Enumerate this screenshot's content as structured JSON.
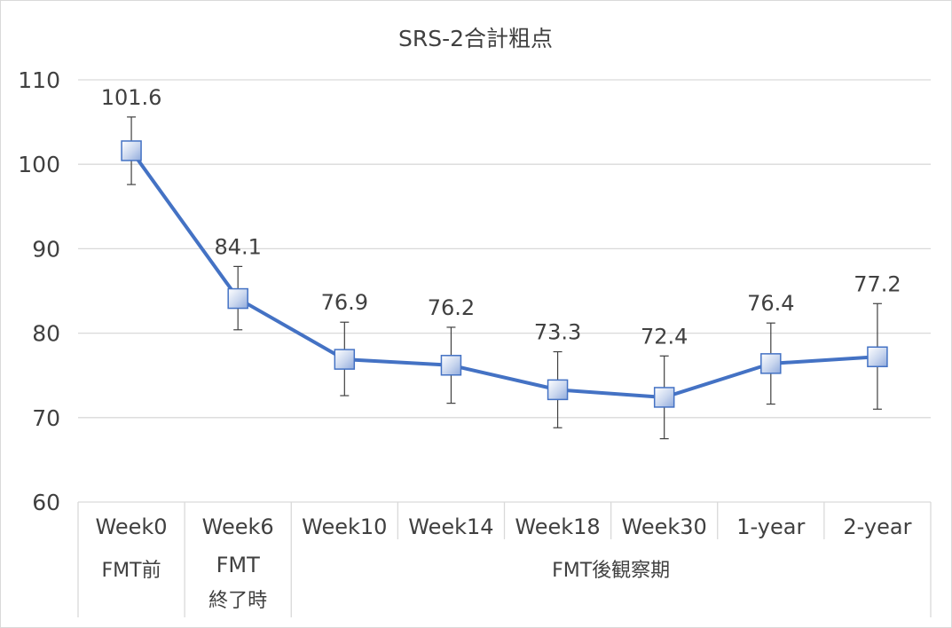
{
  "chart_data": {
    "type": "line",
    "title": "SRS-2合計粗点",
    "xlabel": "",
    "ylabel": "",
    "ylim": [
      60,
      110
    ],
    "yticks": [
      60,
      70,
      80,
      90,
      100,
      110
    ],
    "grid": true,
    "categories": [
      "Week0",
      "Week6",
      "Week10",
      "Week14",
      "Week18",
      "Week30",
      "1-year",
      "2-year"
    ],
    "category_groups": [
      {
        "label": "FMT前",
        "span": [
          0,
          0
        ]
      },
      {
        "label_line1": "FMT",
        "label_line2": "終了時",
        "span": [
          1,
          1
        ]
      },
      {
        "label": "FMT後観察期",
        "span": [
          2,
          7
        ]
      }
    ],
    "series": [
      {
        "values": [
          101.6,
          84.1,
          76.9,
          76.2,
          73.3,
          72.4,
          76.4,
          77.2
        ],
        "data_labels": [
          "101.6",
          "84.1",
          "76.9",
          "76.2",
          "73.3",
          "72.4",
          "76.4",
          "77.2"
        ],
        "error_upper": [
          105.6,
          87.9,
          81.3,
          80.7,
          77.8,
          77.3,
          81.2,
          83.5
        ],
        "error_lower": [
          97.6,
          80.4,
          72.6,
          71.7,
          68.8,
          67.5,
          71.6,
          71.0
        ],
        "color": "#4472c4",
        "marker": "square"
      }
    ]
  }
}
